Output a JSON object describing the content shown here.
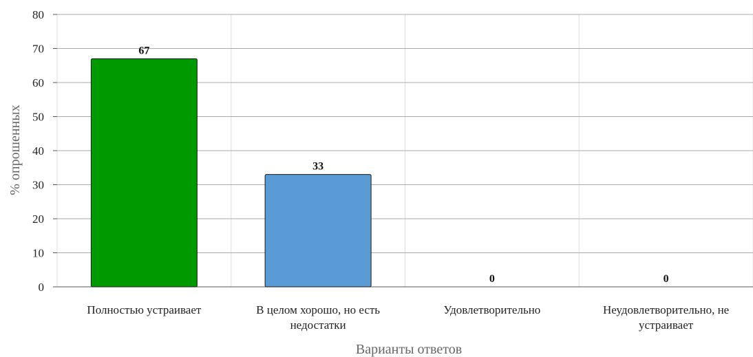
{
  "chart_data": {
    "type": "bar",
    "categories": [
      [
        "Полностью устраивает"
      ],
      [
        "В целом хорошо, но есть",
        "недостатки"
      ],
      [
        "Удовлетворительно"
      ],
      [
        "Неудовлетворительно, не",
        "устраивает"
      ]
    ],
    "values": [
      67,
      33,
      0,
      0
    ],
    "data_labels": [
      "67",
      "33",
      "0",
      "0"
    ],
    "bar_colors": [
      "#009900",
      "#5b9bd5",
      "#5b9bd5",
      "#5b9bd5"
    ],
    "ylabel": "% опрошенных",
    "xlabel": "Варианты ответов",
    "ylim": [
      0,
      80
    ],
    "yticks": [
      0,
      10,
      20,
      30,
      40,
      50,
      60,
      70,
      80
    ],
    "grid": true,
    "legend": "none"
  }
}
